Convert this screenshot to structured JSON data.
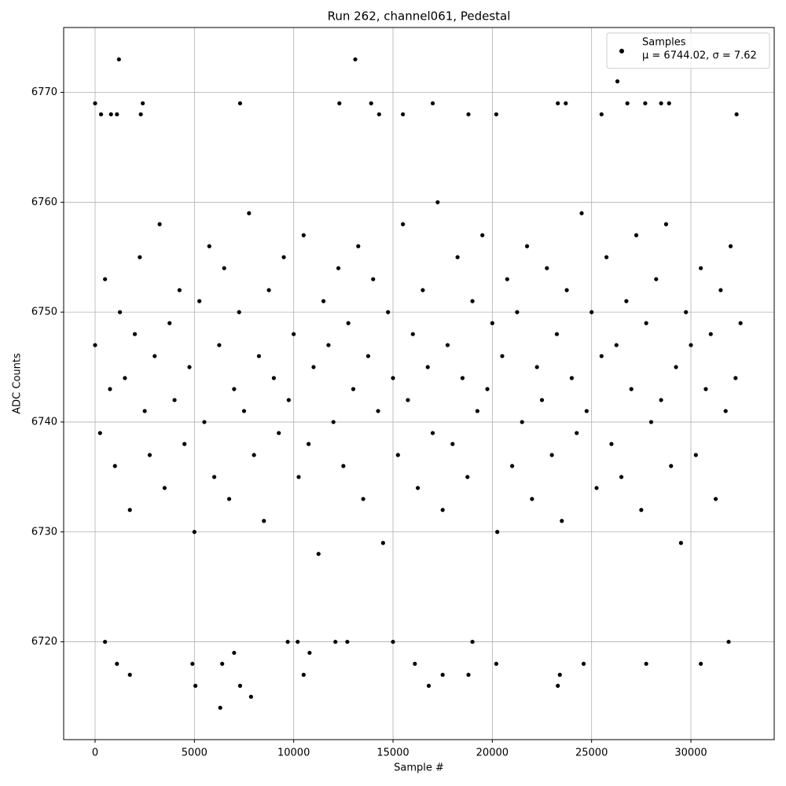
{
  "chart_data": {
    "type": "scatter",
    "title": "Run 262, channel061, Pedestal",
    "x_label": "Sample #",
    "y_label": "ADC Counts",
    "legend_note": "μ = 6744.02, σ = 7.62",
    "legend": "upper right",
    "grid": true,
    "xlim": [
      -1583,
      34195
    ],
    "ylim": [
      6711.1,
      6775.9
    ],
    "xticks": [
      0,
      5000,
      10000,
      15000,
      20000,
      25000,
      30000
    ],
    "yticks": [
      6720,
      6730,
      6740,
      6750,
      6760,
      6770
    ],
    "x": [
      0,
      250,
      500,
      750,
      1000,
      1250,
      1500,
      1750,
      2000,
      2250,
      2500,
      2750,
      3000,
      3250,
      3500,
      3750,
      4000,
      4250,
      4500,
      4750,
      5000,
      5250,
      5500,
      5750,
      6000,
      6250,
      6500,
      6750,
      7000,
      7250,
      7500,
      7750,
      8000,
      8250,
      8500,
      8750,
      9000,
      9250,
      9500,
      9750,
      10000,
      10250,
      10500,
      10750,
      11000,
      11250,
      11500,
      11750,
      12000,
      12250,
      12500,
      12750,
      13000,
      13250,
      13500,
      13750,
      14000,
      14250,
      14500,
      14750,
      15000,
      15250,
      15500,
      15750,
      16000,
      16250,
      16500,
      16750,
      17000,
      17250,
      17500,
      17750,
      18000,
      18250,
      18500,
      18750,
      19000,
      19250,
      19500,
      19750,
      20000,
      20250,
      20500,
      20750,
      21000,
      21250,
      21500,
      21750,
      22000,
      22250,
      22500,
      22750,
      23000,
      23250,
      23500,
      23750,
      24000,
      24250,
      24500,
      24750,
      25000,
      25250,
      25500,
      25750,
      26000,
      26250,
      26500,
      26750,
      27000,
      27250,
      27500,
      27750,
      28000,
      28250,
      28500,
      28750,
      29000,
      29250,
      29500,
      29750,
      30000,
      30250,
      30500,
      30750,
      31000,
      31250,
      31500,
      31750,
      32000,
      32250,
      32500,
      1200,
      13100,
      26300,
      0,
      2400,
      7300,
      12300,
      13900,
      17000,
      23300,
      23700,
      26800,
      27700,
      28500,
      28900,
      300,
      800,
      1100,
      2300,
      14300,
      15500,
      18800,
      20200,
      25500,
      32300,
      6300,
      7850,
      1100,
      1750,
      500,
      4900,
      5050,
      6400,
      7300,
      7000,
      9700,
      10200,
      10500,
      10800,
      12100,
      12700,
      15000,
      16100,
      16800,
      17500,
      18800,
      19000,
      20200,
      23300,
      23400,
      24600,
      27750,
      30500,
      31900
    ],
    "series": [
      {
        "name": "Samples",
        "color": "#000000",
        "values": [
          6747,
          6739,
          6753,
          6743,
          6736,
          6750,
          6744,
          6732,
          6748,
          6755,
          6741,
          6737,
          6746,
          6758,
          6734,
          6749,
          6742,
          6752,
          6738,
          6745,
          6730,
          6751,
          6740,
          6756,
          6735,
          6747,
          6754,
          6733,
          6743,
          6750,
          6741,
          6759,
          6737,
          6746,
          6731,
          6752,
          6744,
          6739,
          6755,
          6742,
          6748,
          6735,
          6757,
          6738,
          6745,
          6728,
          6751,
          6747,
          6740,
          6754,
          6736,
          6749,
          6743,
          6756,
          6733,
          6746,
          6753,
          6741,
          6729,
          6750,
          6744,
          6737,
          6758,
          6742,
          6748,
          6734,
          6752,
          6745,
          6739,
          6760,
          6732,
          6747,
          6738,
          6755,
          6744,
          6735,
          6751,
          6741,
          6757,
          6743,
          6749,
          6730,
          6746,
          6753,
          6736,
          6750,
          6740,
          6756,
          6733,
          6745,
          6742,
          6754,
          6737,
          6748,
          6731,
          6752,
          6744,
          6739,
          6759,
          6741,
          6750,
          6734,
          6746,
          6755,
          6738,
          6747,
          6735,
          6751,
          6743,
          6757,
          6732,
          6749,
          6740,
          6753,
          6742,
          6758,
          6736,
          6745,
          6729,
          6750,
          6747,
          6737,
          6754,
          6743,
          6748,
          6733,
          6752,
          6741,
          6756,
          6744,
          6749,
          6773,
          6773,
          6771,
          6769,
          6769,
          6769,
          6769,
          6769,
          6769,
          6769,
          6769,
          6769,
          6769,
          6769,
          6769,
          6768,
          6768,
          6768,
          6768,
          6768,
          6768,
          6768,
          6768,
          6768,
          6768,
          6714,
          6715,
          6718,
          6717,
          6720,
          6718,
          6716,
          6718,
          6716,
          6719,
          6720,
          6720,
          6717,
          6719,
          6720,
          6720,
          6720,
          6718,
          6716,
          6717,
          6717,
          6720,
          6718,
          6716,
          6717,
          6718,
          6718,
          6718,
          6720
        ]
      }
    ]
  }
}
